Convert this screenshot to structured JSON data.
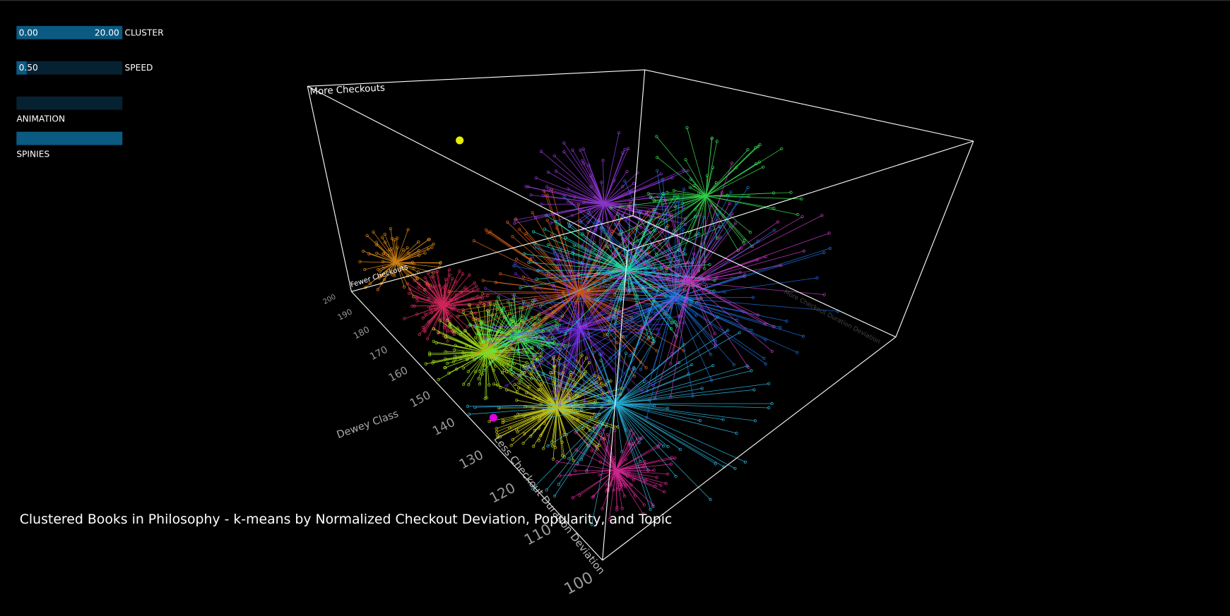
{
  "controls": {
    "cluster": {
      "min_label": "0.00",
      "max_label": "20.00",
      "label": "CLUSTER"
    },
    "speed": {
      "value_label": "0.50",
      "label": "SPEED"
    },
    "animation": {
      "label": "ANIMATION"
    },
    "spinies": {
      "label": "SPINIES"
    }
  },
  "plot": {
    "title": "Clustered Books in Philosophy - k-means by Normalized Checkout Deviation, Popularity, and Topic",
    "top_label": "More Checkouts",
    "bottom_label": "Fewer Checkouts",
    "dewey_axis_label": "Dewey Class",
    "deviation_axis_label": "Less Checkout Duration Deviation",
    "far_axis_label": "More Checkout Duration Deviation",
    "dewey_ticks": [
      200,
      190,
      180,
      170,
      160,
      150,
      140,
      130,
      120,
      110,
      100
    ]
  }
}
